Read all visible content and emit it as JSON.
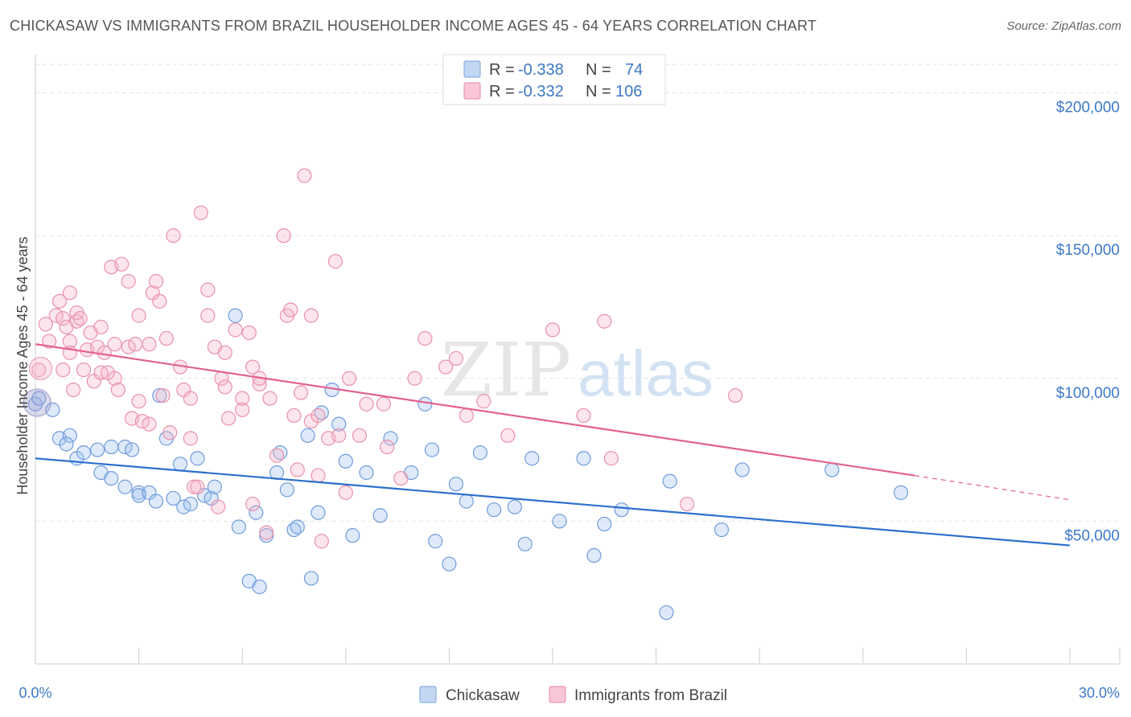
{
  "title": "CHICKASAW VS IMMIGRANTS FROM BRAZIL HOUSEHOLDER INCOME AGES 45 - 64 YEARS CORRELATION CHART",
  "source": "Source: ZipAtlas.com",
  "watermark": {
    "part1": "ZIP",
    "part2": "atlas"
  },
  "legend": {
    "r_label": "R =",
    "n_label": "N =",
    "rows": [
      {
        "r": "-0.338",
        "n": "74",
        "fill": "#c3d7f3",
        "stroke": "#7aa3dc"
      },
      {
        "r": "-0.332",
        "n": "106",
        "fill": "#f8c6d5",
        "stroke": "#e98aa6"
      }
    ]
  },
  "bottom_legend": [
    "Chickasaw",
    "Immigrants from Brazil"
  ],
  "colors": {
    "blue_fill": "rgba(160,196,240,0.35)",
    "blue_stroke": "#6f9cdb",
    "blue_line": "#2c6fce",
    "pink_fill": "rgba(246,180,200,0.35)",
    "pink_stroke": "#e991ac",
    "pink_line": "#e2628e",
    "grid": "#e2e2e2",
    "axis": "#cccccc",
    "tick_label": "#3c79c9"
  },
  "chart_data": {
    "type": "scatter",
    "title": "CHICKASAW VS IMMIGRANTS FROM BRAZIL HOUSEHOLDER INCOME AGES 45 - 64 YEARS CORRELATION CHART",
    "xlabel": "",
    "ylabel": "Householder Income Ages 45 - 64 years",
    "xlim": [
      0,
      30
    ],
    "ylim": [
      0,
      210000
    ],
    "x_tick_labels": [
      "0.0%",
      "30.0%"
    ],
    "y_ticks": [
      50000,
      100000,
      150000,
      200000
    ],
    "y_tick_labels": [
      "$50,000",
      "$100,000",
      "$150,000",
      "$200,000"
    ],
    "grid": true,
    "legend_position": "top-center",
    "series": [
      {
        "name": "Chickasaw",
        "r": -0.338,
        "n": 74,
        "trend": {
          "x": [
            0,
            30
          ],
          "y": [
            72000,
            41500
          ]
        },
        "points": [
          [
            0.0,
            91000
          ],
          [
            0.1,
            93000
          ],
          [
            0.5,
            89000
          ],
          [
            0.7,
            79000
          ],
          [
            1.0,
            80000
          ],
          [
            0.9,
            77000
          ],
          [
            1.2,
            72000
          ],
          [
            1.4,
            74000
          ],
          [
            1.8,
            75000
          ],
          [
            1.9,
            67000
          ],
          [
            2.2,
            76000
          ],
          [
            2.2,
            65000
          ],
          [
            2.6,
            76000
          ],
          [
            2.6,
            62000
          ],
          [
            2.8,
            75000
          ],
          [
            3.0,
            60000
          ],
          [
            3.0,
            59000
          ],
          [
            3.3,
            60000
          ],
          [
            3.5,
            57000
          ],
          [
            3.6,
            94000
          ],
          [
            3.8,
            79000
          ],
          [
            4.0,
            58000
          ],
          [
            4.2,
            70000
          ],
          [
            4.3,
            55000
          ],
          [
            4.5,
            56000
          ],
          [
            4.7,
            72000
          ],
          [
            4.9,
            59000
          ],
          [
            5.1,
            58000
          ],
          [
            5.2,
            62000
          ],
          [
            5.8,
            122000
          ],
          [
            5.9,
            48000
          ],
          [
            6.2,
            29000
          ],
          [
            6.4,
            53000
          ],
          [
            6.5,
            27000
          ],
          [
            6.7,
            45000
          ],
          [
            7.0,
            67000
          ],
          [
            7.1,
            74000
          ],
          [
            7.3,
            61000
          ],
          [
            7.5,
            47000
          ],
          [
            7.6,
            48000
          ],
          [
            7.9,
            80000
          ],
          [
            8.0,
            30000
          ],
          [
            8.2,
            53000
          ],
          [
            8.3,
            88000
          ],
          [
            8.6,
            96000
          ],
          [
            8.8,
            84000
          ],
          [
            9.0,
            71000
          ],
          [
            9.2,
            45000
          ],
          [
            9.6,
            67000
          ],
          [
            10.0,
            52000
          ],
          [
            10.3,
            79000
          ],
          [
            10.9,
            67000
          ],
          [
            11.3,
            91000
          ],
          [
            11.5,
            75000
          ],
          [
            11.6,
            43000
          ],
          [
            12.0,
            35000
          ],
          [
            12.2,
            63000
          ],
          [
            12.5,
            57000
          ],
          [
            12.9,
            74000
          ],
          [
            13.3,
            54000
          ],
          [
            13.9,
            55000
          ],
          [
            14.2,
            42000
          ],
          [
            14.4,
            72000
          ],
          [
            15.2,
            50000
          ],
          [
            15.9,
            72000
          ],
          [
            16.2,
            38000
          ],
          [
            16.5,
            49000
          ],
          [
            17.0,
            54000
          ],
          [
            18.3,
            18000
          ],
          [
            18.4,
            64000
          ],
          [
            19.9,
            47000
          ],
          [
            20.5,
            68000
          ],
          [
            23.1,
            68000
          ],
          [
            25.1,
            60000
          ]
        ]
      },
      {
        "name": "Immigrants from Brazil",
        "r": -0.332,
        "n": 106,
        "trend": {
          "x": [
            0,
            25.5
          ],
          "y": [
            112000,
            66000
          ]
        },
        "trend_dashed": {
          "x": [
            25.5,
            30
          ],
          "y": [
            66000,
            57500
          ]
        },
        "points": [
          [
            0.1,
            103000
          ],
          [
            0.3,
            119000
          ],
          [
            0.4,
            113000
          ],
          [
            0.6,
            122000
          ],
          [
            0.7,
            127000
          ],
          [
            0.8,
            121000
          ],
          [
            0.8,
            103000
          ],
          [
            0.9,
            118000
          ],
          [
            1.0,
            113000
          ],
          [
            1.0,
            109000
          ],
          [
            1.0,
            130000
          ],
          [
            1.1,
            96000
          ],
          [
            1.2,
            120000
          ],
          [
            1.2,
            123000
          ],
          [
            1.3,
            121000
          ],
          [
            1.4,
            103000
          ],
          [
            1.5,
            110000
          ],
          [
            1.6,
            116000
          ],
          [
            1.7,
            99000
          ],
          [
            1.8,
            111000
          ],
          [
            1.9,
            118000
          ],
          [
            1.9,
            102000
          ],
          [
            2.0,
            109000
          ],
          [
            2.1,
            102000
          ],
          [
            2.2,
            139000
          ],
          [
            2.3,
            112000
          ],
          [
            2.3,
            100000
          ],
          [
            2.4,
            96000
          ],
          [
            2.5,
            140000
          ],
          [
            2.7,
            111000
          ],
          [
            2.7,
            134000
          ],
          [
            2.8,
            86000
          ],
          [
            2.9,
            112000
          ],
          [
            3.0,
            92000
          ],
          [
            3.0,
            122000
          ],
          [
            3.1,
            85000
          ],
          [
            3.3,
            84000
          ],
          [
            3.3,
            112000
          ],
          [
            3.4,
            130000
          ],
          [
            3.5,
            134000
          ],
          [
            3.6,
            127000
          ],
          [
            3.7,
            94000
          ],
          [
            3.8,
            114000
          ],
          [
            3.9,
            81000
          ],
          [
            4.0,
            150000
          ],
          [
            4.2,
            104000
          ],
          [
            4.3,
            96000
          ],
          [
            4.5,
            93000
          ],
          [
            4.5,
            79000
          ],
          [
            4.6,
            62000
          ],
          [
            4.7,
            62000
          ],
          [
            4.8,
            158000
          ],
          [
            5.0,
            131000
          ],
          [
            5.0,
            122000
          ],
          [
            5.2,
            111000
          ],
          [
            5.3,
            55000
          ],
          [
            5.4,
            100000
          ],
          [
            5.5,
            97000
          ],
          [
            5.5,
            109000
          ],
          [
            5.6,
            86000
          ],
          [
            5.8,
            117000
          ],
          [
            6.0,
            89000
          ],
          [
            6.0,
            93000
          ],
          [
            6.2,
            116000
          ],
          [
            6.3,
            56000
          ],
          [
            6.3,
            104000
          ],
          [
            6.5,
            98000
          ],
          [
            6.5,
            100000
          ],
          [
            6.7,
            46000
          ],
          [
            6.8,
            93000
          ],
          [
            7.0,
            73000
          ],
          [
            7.2,
            150000
          ],
          [
            7.3,
            122000
          ],
          [
            7.4,
            124000
          ],
          [
            7.5,
            87000
          ],
          [
            7.6,
            68000
          ],
          [
            7.7,
            95000
          ],
          [
            7.8,
            171000
          ],
          [
            8.0,
            85000
          ],
          [
            8.0,
            122000
          ],
          [
            8.2,
            87000
          ],
          [
            8.2,
            66000
          ],
          [
            8.3,
            43000
          ],
          [
            8.5,
            79000
          ],
          [
            8.7,
            141000
          ],
          [
            8.8,
            80000
          ],
          [
            9.0,
            60000
          ],
          [
            9.1,
            100000
          ],
          [
            9.4,
            80000
          ],
          [
            9.6,
            91000
          ],
          [
            10.1,
            91000
          ],
          [
            10.2,
            76000
          ],
          [
            10.6,
            65000
          ],
          [
            11.0,
            100000
          ],
          [
            11.3,
            114000
          ],
          [
            11.9,
            104000
          ],
          [
            12.2,
            107000
          ],
          [
            12.5,
            87000
          ],
          [
            13.0,
            92000
          ],
          [
            13.7,
            80000
          ],
          [
            15.0,
            117000
          ],
          [
            15.9,
            87000
          ],
          [
            16.5,
            120000
          ],
          [
            16.7,
            72000
          ],
          [
            18.9,
            56000
          ],
          [
            20.3,
            94000
          ]
        ]
      }
    ]
  }
}
